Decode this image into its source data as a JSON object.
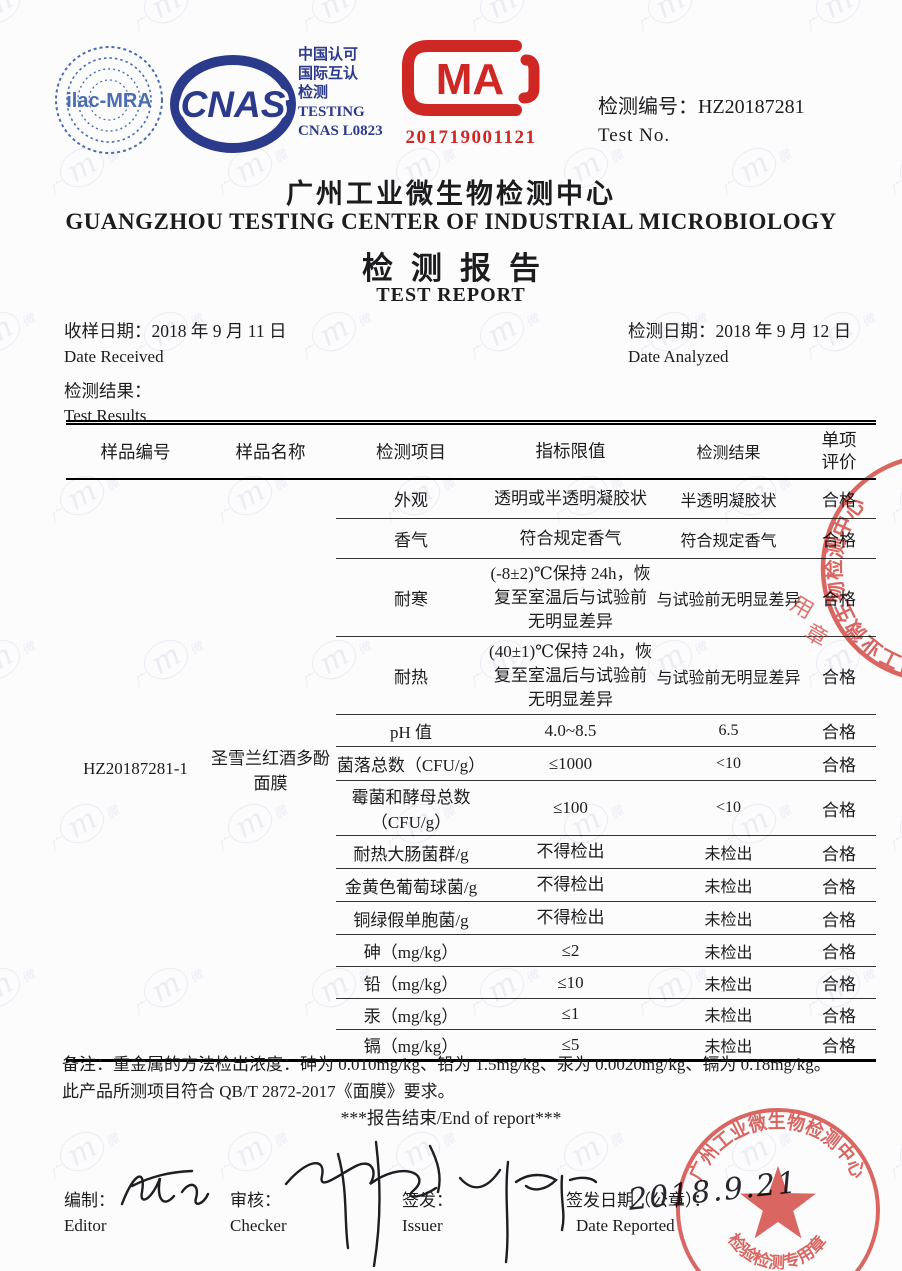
{
  "header": {
    "ilac_label": "ilac-MRA",
    "cnas_label": "CNAS",
    "cert_lines": [
      "中国认可",
      "国际互认",
      "检测",
      "TESTING",
      "CNAS L0823"
    ],
    "cma_letters": "MA",
    "cma_number": "201719001121",
    "test_no_label_zh": "检测编号：",
    "test_no_value": "HZ20187281",
    "test_no_label_en": "Test No."
  },
  "title": {
    "org_zh": "广州工业微生物检测中心",
    "org_en": "GUANGZHOU TESTING CENTER OF INDUSTRIAL MICROBIOLOGY",
    "report_zh": "检测报告",
    "report_en": "TEST REPORT"
  },
  "dates": {
    "received_label_zh": "收样日期：",
    "received_value": "2018 年 9 月 11 日",
    "received_label_en": "Date Received",
    "analyzed_label_zh": "检测日期：",
    "analyzed_value": "2018 年 9 月 12 日",
    "analyzed_label_en": "Date Analyzed"
  },
  "results_heading": {
    "zh": "检测结果：",
    "en": "Test Results"
  },
  "table": {
    "headers": [
      "样品编号",
      "样品名称",
      "检测项目",
      "指标限值",
      "检测结果",
      "单项评价"
    ],
    "sample_id": "HZ20187281-1",
    "sample_name": "圣雪兰红酒多酚面膜",
    "rows": [
      {
        "item": "外观",
        "limit": "透明或半透明凝胶状",
        "result": "半透明凝胶状",
        "evaluation": "合格"
      },
      {
        "item": "香气",
        "limit": "符合规定香气",
        "result": "符合规定香气",
        "evaluation": "合格"
      },
      {
        "item": "耐寒",
        "limit": "(-8±2)℃保持 24h，恢复至室温后与试验前无明显差异",
        "result": "与试验前无明显差异",
        "evaluation": "合格"
      },
      {
        "item": "耐热",
        "limit": "(40±1)℃保持 24h，恢复至室温后与试验前无明显差异",
        "result": "与试验前无明显差异",
        "evaluation": "合格"
      },
      {
        "item": "pH 值",
        "limit": "4.0~8.5",
        "result": "6.5",
        "evaluation": "合格"
      },
      {
        "item": "菌落总数（CFU/g）",
        "limit": "≤1000",
        "result": "<10",
        "evaluation": "合格"
      },
      {
        "item": "霉菌和酵母总数（CFU/g）",
        "limit": "≤100",
        "result": "<10",
        "evaluation": "合格"
      },
      {
        "item": "耐热大肠菌群/g",
        "limit": "不得检出",
        "result": "未检出",
        "evaluation": "合格"
      },
      {
        "item": "金黄色葡萄球菌/g",
        "limit": "不得检出",
        "result": "未检出",
        "evaluation": "合格"
      },
      {
        "item": "铜绿假单胞菌/g",
        "limit": "不得检出",
        "result": "未检出",
        "evaluation": "合格"
      },
      {
        "item": "砷（mg/kg）",
        "limit": "≤2",
        "result": "未检出",
        "evaluation": "合格"
      },
      {
        "item": "铅（mg/kg）",
        "limit": "≤10",
        "result": "未检出",
        "evaluation": "合格"
      },
      {
        "item": "汞（mg/kg）",
        "limit": "≤1",
        "result": "未检出",
        "evaluation": "合格"
      },
      {
        "item": "镉（mg/kg）",
        "limit": "≤5",
        "result": "未检出",
        "evaluation": "合格"
      }
    ]
  },
  "notes": {
    "line1": "备注：重金属的方法检出浓度：砷为 0.010mg/kg、铅为 1.5mg/kg、汞为 0.0020mg/kg、镉为 0.18mg/kg。",
    "line2": "此产品所测项目符合 QB/T 2872-2017《面膜》要求。",
    "end": "***报告结束/End of report***"
  },
  "signoff": {
    "editor_zh": "编制：",
    "editor_en": "Editor",
    "checker_zh": "审核：",
    "checker_en": "Checker",
    "issuer_zh": "签发：",
    "issuer_en": "Issuer",
    "date_zh": "签发日期（公章）：",
    "date_en": "Date Reported",
    "date_value": "2018.9.21"
  },
  "stamps": {
    "ring_text": "广州工业微生物检测中心",
    "seal_text": "检验检测专用章",
    "partial_char_1": "用",
    "partial_char_2": "章",
    "color": "#d4453f"
  },
  "watermark": {
    "left": "广",
    "mono": "m",
    "right": "微"
  },
  "colors": {
    "navy": "#2c3a8c",
    "ilac_blue": "#4a6cb0",
    "cma_red": "#cf2724",
    "stamp_red": "#d4453f"
  }
}
